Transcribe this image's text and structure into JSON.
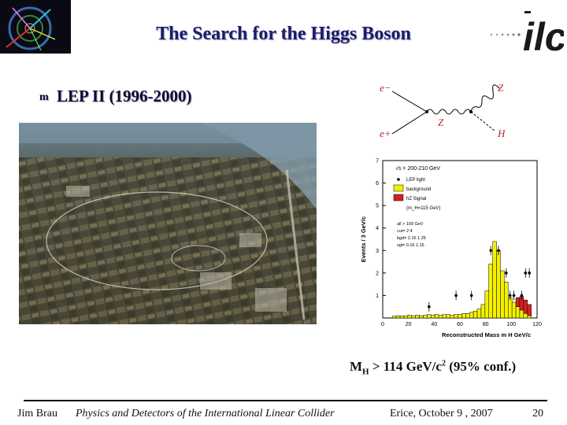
{
  "slide": {
    "title": "The Search for the Higgs Boson",
    "bullet_glyph": "m",
    "bullet_text": "LEP II (1996-2000)",
    "mass_limit": {
      "symbol": "M",
      "subscript": "H",
      "text": " > 114 GeV/c",
      "power": "2",
      "suffix": " (95%  conf.)"
    }
  },
  "logo": {
    "text": "ilc"
  },
  "feynman": {
    "e_minus": "e−",
    "e_plus": "e+",
    "z_out": "Z",
    "z_mid": "Z",
    "h_out": "H"
  },
  "footer": {
    "author": "Jim Brau",
    "talk": "Physics and Detectors of the International Linear Collider",
    "venue": "Erice, October 9 , 2007",
    "page": "20"
  },
  "chart_data": {
    "type": "bar",
    "title": "√s = 200-210 GeV",
    "xlabel": "Reconstructed Mass m",
    "xlabel_sub": "H",
    "xlabel_unit": "GeV/c",
    "ylabel": "Events / 3 GeV/c",
    "xlim": [
      0,
      120
    ],
    "ylim": [
      0,
      7
    ],
    "xticks": [
      "0",
      "20",
      "40",
      "60",
      "80",
      "100",
      "120"
    ],
    "yticks": [
      "1",
      "2",
      "3",
      "4",
      "5",
      "6",
      "7"
    ],
    "legend": [
      "LEP light",
      "background",
      "hZ Signal",
      "(m_H=115 GeV)"
    ],
    "annotations": [
      "all > 109 GeV",
      "cut= 2    4",
      "bgd= 2.16  1.25",
      "sgl= 0.16  1.15"
    ],
    "series": [
      {
        "name": "background",
        "values": [
          [
            9,
            0.08
          ],
          [
            12,
            0.1
          ],
          [
            15,
            0.08
          ],
          [
            18,
            0.1
          ],
          [
            21,
            0.12
          ],
          [
            24,
            0.1
          ],
          [
            27,
            0.12
          ],
          [
            30,
            0.1
          ],
          [
            33,
            0.12
          ],
          [
            36,
            0.15
          ],
          [
            39,
            0.12
          ],
          [
            42,
            0.15
          ],
          [
            45,
            0.12
          ],
          [
            48,
            0.15
          ],
          [
            51,
            0.15
          ],
          [
            54,
            0.12
          ],
          [
            57,
            0.15
          ],
          [
            60,
            0.15
          ],
          [
            63,
            0.2
          ],
          [
            66,
            0.2
          ],
          [
            69,
            0.25
          ],
          [
            72,
            0.3
          ],
          [
            75,
            0.4
          ],
          [
            78,
            0.6
          ],
          [
            81,
            1.2
          ],
          [
            84,
            2.4
          ],
          [
            87,
            3.4
          ],
          [
            90,
            3.0
          ],
          [
            93,
            2.1
          ],
          [
            96,
            1.6
          ],
          [
            99,
            0.9
          ],
          [
            102,
            0.7
          ],
          [
            105,
            0.5
          ],
          [
            108,
            0.35
          ],
          [
            111,
            0.2
          ],
          [
            114,
            0.1
          ]
        ]
      },
      {
        "name": "hZ Signal",
        "values": [
          [
            105,
            0.4
          ],
          [
            108,
            0.6
          ],
          [
            111,
            0.6
          ],
          [
            114,
            0.5
          ]
        ]
      },
      {
        "name": "LEP light",
        "values": [
          [
            36,
            0.5
          ],
          [
            57,
            1.0
          ],
          [
            69,
            1.0
          ],
          [
            84,
            3.0
          ],
          [
            90,
            3.0
          ],
          [
            96,
            2.0
          ],
          [
            99,
            1.0
          ],
          [
            102,
            1.0
          ],
          [
            108,
            1.0
          ],
          [
            111,
            2.0
          ],
          [
            114,
            2.0
          ]
        ]
      }
    ]
  }
}
